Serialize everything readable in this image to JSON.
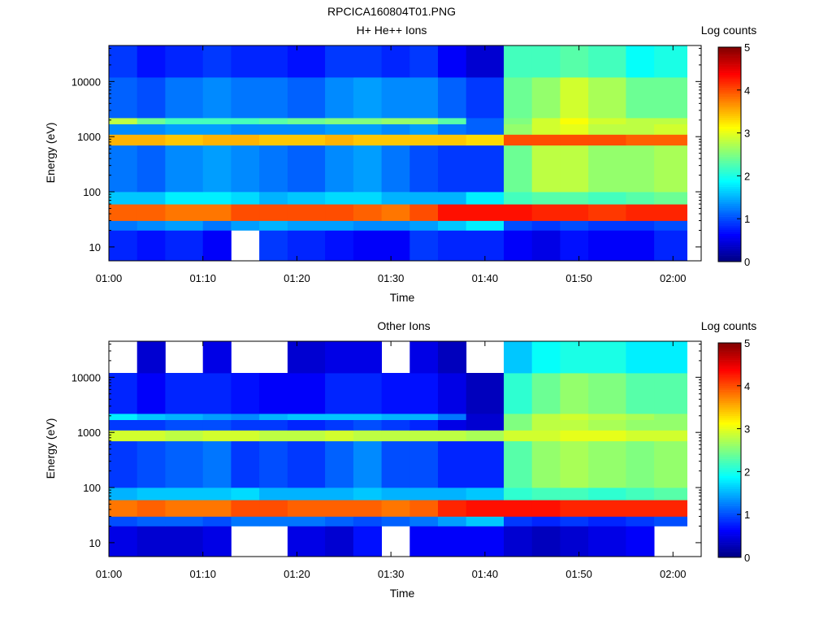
{
  "figure": {
    "title": "RPCICA160804T01.PNG"
  },
  "colormap": [
    "#000080",
    "#0000ff",
    "#0080ff",
    "#00ffff",
    "#80ff80",
    "#ffff00",
    "#ff8000",
    "#ff0000",
    "#800000"
  ],
  "chart_data": [
    {
      "type": "heatmap",
      "title": "H+ He++ Ions",
      "xlabel": "Time",
      "ylabel": "Energy (eV)",
      "xlim": [
        "01:00",
        "02:03"
      ],
      "xticks": [
        "01:00",
        "01:10",
        "01:20",
        "01:30",
        "01:40",
        "01:50",
        "02:00"
      ],
      "ylim": [
        5.6,
        45000
      ],
      "yscale": "log",
      "yticks": [
        10,
        100,
        1000,
        10000
      ],
      "yticklabels": [
        "10",
        "100",
        "1000",
        "10000"
      ],
      "time_columns": [
        "01:00",
        "01:03",
        "01:06",
        "01:10",
        "01:13",
        "01:16",
        "01:19",
        "01:23",
        "01:26",
        "01:29",
        "01:32",
        "01:35",
        "01:38",
        "01:42",
        "01:45",
        "01:48",
        "01:51",
        "01:55",
        "01:58"
      ],
      "energy_bands_eV": [
        {
          "range": [
            5.6,
            20
          ],
          "log_counts": [
            0.8,
            0.7,
            0.8,
            0.6,
            null,
            0.9,
            0.8,
            0.7,
            0.6,
            0.6,
            0.9,
            0.8,
            0.8,
            0.6,
            0.5,
            0.7,
            0.6,
            0.6,
            0.8
          ]
        },
        {
          "range": [
            20,
            30
          ],
          "log_counts": [
            1.2,
            1.3,
            1.4,
            1.2,
            1.4,
            1.5,
            1.4,
            1.4,
            1.3,
            1.3,
            1.4,
            1.6,
            1.8,
            1.0,
            0.9,
            1.0,
            0.9,
            0.9,
            1.0
          ]
        },
        {
          "range": [
            30,
            60
          ],
          "log_counts": [
            3.9,
            3.9,
            3.8,
            3.8,
            4.0,
            4.0,
            4.0,
            4.0,
            3.9,
            3.8,
            4.0,
            4.3,
            4.3,
            4.3,
            4.2,
            4.2,
            4.1,
            4.2,
            4.2
          ]
        },
        {
          "range": [
            60,
            100
          ],
          "log_counts": [
            1.6,
            1.6,
            1.8,
            1.8,
            1.7,
            1.5,
            1.6,
            1.7,
            1.7,
            1.5,
            1.5,
            1.5,
            1.8,
            2.2,
            2.3,
            2.3,
            2.2,
            2.3,
            2.4
          ]
        },
        {
          "range": [
            100,
            700
          ],
          "log_counts": [
            1.2,
            1.1,
            1.3,
            1.4,
            1.3,
            1.2,
            1.1,
            1.3,
            1.4,
            1.2,
            1.0,
            0.9,
            0.9,
            2.4,
            2.8,
            2.8,
            2.6,
            2.6,
            2.7
          ]
        },
        {
          "range": [
            700,
            1100
          ],
          "log_counts": [
            3.5,
            3.5,
            3.4,
            3.5,
            3.5,
            3.4,
            3.4,
            3.5,
            3.4,
            3.4,
            3.4,
            3.4,
            3.3,
            4.0,
            4.0,
            4.0,
            4.0,
            3.9,
            3.9
          ]
        },
        {
          "range": [
            1100,
            1700
          ],
          "log_counts": [
            1.3,
            1.3,
            1.4,
            1.4,
            1.3,
            1.3,
            1.3,
            1.4,
            1.4,
            1.3,
            1.4,
            1.2,
            1.1,
            2.6,
            2.9,
            3.0,
            2.8,
            2.8,
            2.9
          ]
        },
        {
          "range": [
            1700,
            2200
          ],
          "log_counts": [
            2.8,
            2.4,
            2.2,
            2.2,
            2.2,
            2.3,
            2.4,
            2.5,
            2.5,
            2.6,
            2.6,
            2.3,
            1.1,
            2.5,
            2.9,
            3.1,
            2.9,
            2.8,
            2.8
          ]
        },
        {
          "range": [
            2200,
            12000
          ],
          "log_counts": [
            1.1,
            1.0,
            1.2,
            1.3,
            1.2,
            1.2,
            1.1,
            1.3,
            1.4,
            1.3,
            1.3,
            1.1,
            0.9,
            2.4,
            2.6,
            2.9,
            2.7,
            2.4,
            2.4
          ]
        },
        {
          "range": [
            12000,
            45000
          ],
          "log_counts": [
            0.9,
            0.7,
            0.8,
            0.9,
            0.8,
            0.8,
            0.7,
            0.9,
            0.9,
            0.8,
            0.9,
            0.6,
            0.4,
            2.2,
            2.2,
            2.3,
            2.2,
            1.9,
            2.0
          ]
        }
      ],
      "colorbar": {
        "label": "Log counts",
        "range": [
          0,
          5
        ],
        "ticks": [
          "0",
          "1",
          "2",
          "3",
          "4",
          "5"
        ]
      }
    },
    {
      "type": "heatmap",
      "title": "Other Ions",
      "xlabel": "Time",
      "ylabel": "Energy (eV)",
      "xlim": [
        "01:00",
        "02:03"
      ],
      "xticks": [
        "01:00",
        "01:10",
        "01:20",
        "01:30",
        "01:40",
        "01:50",
        "02:00"
      ],
      "ylim": [
        5.6,
        45000
      ],
      "yscale": "log",
      "yticks": [
        10,
        100,
        1000,
        10000
      ],
      "yticklabels": [
        "10",
        "100",
        "1000",
        "10000"
      ],
      "time_columns": [
        "01:00",
        "01:03",
        "01:06",
        "01:10",
        "01:13",
        "01:16",
        "01:19",
        "01:23",
        "01:26",
        "01:29",
        "01:32",
        "01:35",
        "01:38",
        "01:42",
        "01:45",
        "01:48",
        "01:51",
        "01:55",
        "01:58"
      ],
      "energy_bands_eV": [
        {
          "range": [
            5.6,
            20
          ],
          "log_counts": [
            0.5,
            0.4,
            0.4,
            0.5,
            null,
            null,
            0.5,
            0.4,
            0.7,
            null,
            0.6,
            0.6,
            0.6,
            0.4,
            0.3,
            0.4,
            0.5,
            0.6,
            null
          ]
        },
        {
          "range": [
            20,
            30
          ],
          "log_counts": [
            1.0,
            1.1,
            1.1,
            1.0,
            1.2,
            1.2,
            1.2,
            1.1,
            1.0,
            1.1,
            1.2,
            1.4,
            1.6,
            0.9,
            0.8,
            0.9,
            0.8,
            0.9,
            1.0
          ]
        },
        {
          "range": [
            30,
            60
          ],
          "log_counts": [
            3.8,
            3.9,
            3.8,
            3.8,
            4.0,
            4.0,
            3.9,
            3.9,
            3.9,
            3.8,
            3.9,
            4.2,
            4.3,
            4.3,
            4.3,
            4.2,
            4.2,
            4.2,
            4.2
          ]
        },
        {
          "range": [
            60,
            100
          ],
          "log_counts": [
            1.5,
            1.6,
            1.6,
            1.6,
            1.7,
            1.5,
            1.5,
            1.5,
            1.6,
            1.5,
            1.5,
            1.5,
            1.6,
            2.1,
            2.2,
            2.2,
            2.1,
            2.2,
            2.3
          ]
        },
        {
          "range": [
            100,
            700
          ],
          "log_counts": [
            0.9,
            1.0,
            1.1,
            1.2,
            0.9,
            1.0,
            0.9,
            1.1,
            1.3,
            1.0,
            1.0,
            0.8,
            0.8,
            2.3,
            2.6,
            2.7,
            2.6,
            2.5,
            2.6
          ]
        },
        {
          "range": [
            700,
            1100
          ],
          "log_counts": [
            2.9,
            2.9,
            2.8,
            2.9,
            2.9,
            2.8,
            2.8,
            2.9,
            2.8,
            2.8,
            2.8,
            2.8,
            2.7,
            2.9,
            2.9,
            3.0,
            3.0,
            2.9,
            2.9
          ]
        },
        {
          "range": [
            1100,
            1700
          ],
          "log_counts": [
            0.9,
            0.9,
            1.0,
            1.0,
            0.9,
            0.9,
            0.8,
            0.9,
            1.0,
            0.9,
            0.8,
            0.5,
            0.4,
            2.5,
            2.8,
            2.8,
            2.7,
            2.6,
            2.6
          ]
        },
        {
          "range": [
            1700,
            2200
          ],
          "log_counts": [
            1.8,
            1.6,
            1.5,
            1.4,
            1.3,
            1.5,
            1.6,
            1.6,
            1.6,
            1.5,
            1.5,
            1.2,
            0.4,
            2.5,
            2.8,
            2.9,
            2.8,
            2.7,
            2.6
          ]
        },
        {
          "range": [
            2200,
            12000
          ],
          "log_counts": [
            0.8,
            0.6,
            0.8,
            0.8,
            0.7,
            0.6,
            0.6,
            0.8,
            0.8,
            0.7,
            0.7,
            0.5,
            0.3,
            2.1,
            2.4,
            2.6,
            2.5,
            2.3,
            2.3
          ]
        },
        {
          "range": [
            12000,
            45000
          ],
          "log_counts": [
            null,
            0.4,
            null,
            0.5,
            null,
            null,
            0.4,
            0.5,
            0.5,
            null,
            0.5,
            0.3,
            null,
            1.6,
            1.9,
            2.0,
            2.0,
            1.8,
            1.8
          ]
        }
      ],
      "colorbar": {
        "label": "Log counts",
        "range": [
          0,
          5
        ],
        "ticks": [
          "0",
          "1",
          "2",
          "3",
          "4",
          "5"
        ]
      }
    }
  ]
}
